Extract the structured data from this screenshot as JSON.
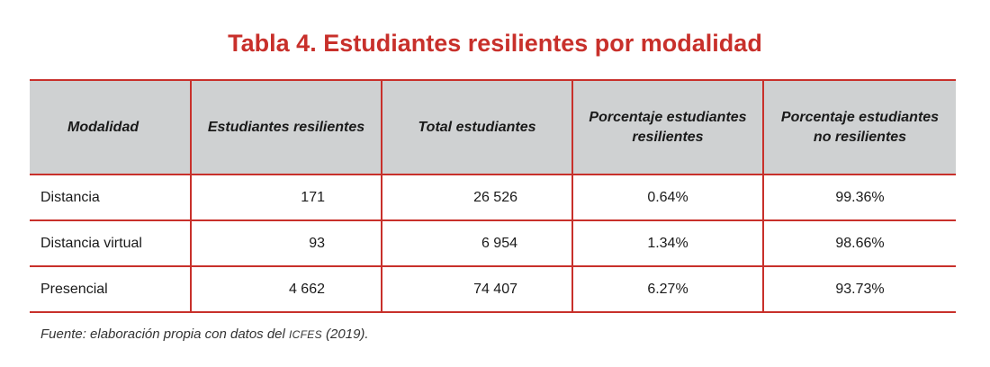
{
  "title": "Tabla 4. Estudiantes resilientes por modalidad",
  "table": {
    "headers": [
      "Modalidad",
      "Estudiantes resilientes",
      "Total estudiantes",
      "Porcentaje estudiantes resilientes",
      "Porcentaje estudiantes no resilientes"
    ],
    "rows": [
      [
        "Distancia",
        "171",
        "26 526",
        "0.64%",
        "99.36%"
      ],
      [
        "Distancia virtual",
        "93",
        "6 954",
        "1.34%",
        "98.66%"
      ],
      [
        "Presencial",
        "4 662",
        "74 407",
        "6.27%",
        "93.73%"
      ]
    ]
  },
  "source": {
    "prefix": "Fuente: elaboración propia con datos del ",
    "org": "ICFES",
    "suffix": " (2019)."
  },
  "colors": {
    "accent": "#c8302b",
    "header_bg": "#cfd1d2"
  }
}
